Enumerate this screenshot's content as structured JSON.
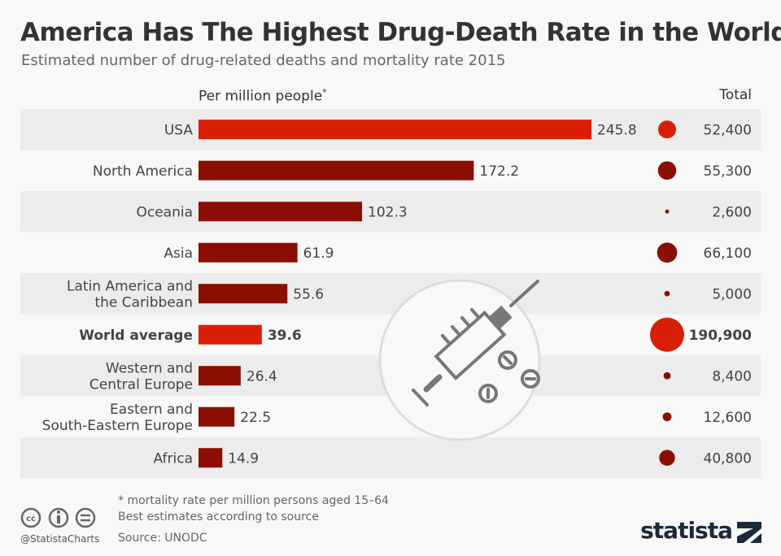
{
  "title": "America Has The Highest Drug-Death Rate in the World",
  "subtitle": "Estimated number of drug-related deaths and mortality rate 2015",
  "colors": {
    "highlight": "#d81e05",
    "bar": "#8a0f02",
    "stripe": "#ececec"
  },
  "chart_data": {
    "type": "bar",
    "orientation": "horizontal",
    "xlabel": "Per million people",
    "xlabel_note": "*",
    "total_label": "Total",
    "categories": [
      "USA",
      "North America",
      "Oceania",
      "Asia",
      "Latin America and the Caribbean",
      "World average",
      "Western and Central Europe",
      "Eastern and South-Eastern Europe",
      "Africa"
    ],
    "category_lines": [
      [
        "USA"
      ],
      [
        "North America"
      ],
      [
        "Oceania"
      ],
      [
        "Asia"
      ],
      [
        "Latin America and",
        "the Caribbean"
      ],
      [
        "World average"
      ],
      [
        "Western and",
        "Central Europe"
      ],
      [
        "Eastern and",
        "South-Eastern Europe"
      ],
      [
        "Africa"
      ]
    ],
    "values": [
      245.8,
      172.2,
      102.3,
      61.9,
      55.6,
      39.6,
      26.4,
      22.5,
      14.9
    ],
    "value_labels": [
      "245.8",
      "172.2",
      "102.3",
      "61.9",
      "55.6",
      "39.6",
      "26.4",
      "22.5",
      "14.9"
    ],
    "totals": [
      52400,
      55300,
      2600,
      66100,
      5000,
      190900,
      8400,
      12600,
      40800
    ],
    "total_labels": [
      "52,400",
      "55,300",
      "2,600",
      "66,100",
      "5,000",
      "190,900",
      "8,400",
      "12,600",
      "40,800"
    ],
    "highlighted": [
      "USA",
      "World average"
    ],
    "bold": [
      "World average"
    ]
  },
  "footer": {
    "note": "* mortality rate per million persons aged 15–64",
    "note2": "Best estimates according to source",
    "source": "Source: UNODC",
    "handle": "@StatistaCharts",
    "brand": "statista"
  },
  "icons": [
    "creative-commons-icon",
    "attribution-icon",
    "no-derivatives-icon",
    "syringe-illustration",
    "statista-logo"
  ]
}
